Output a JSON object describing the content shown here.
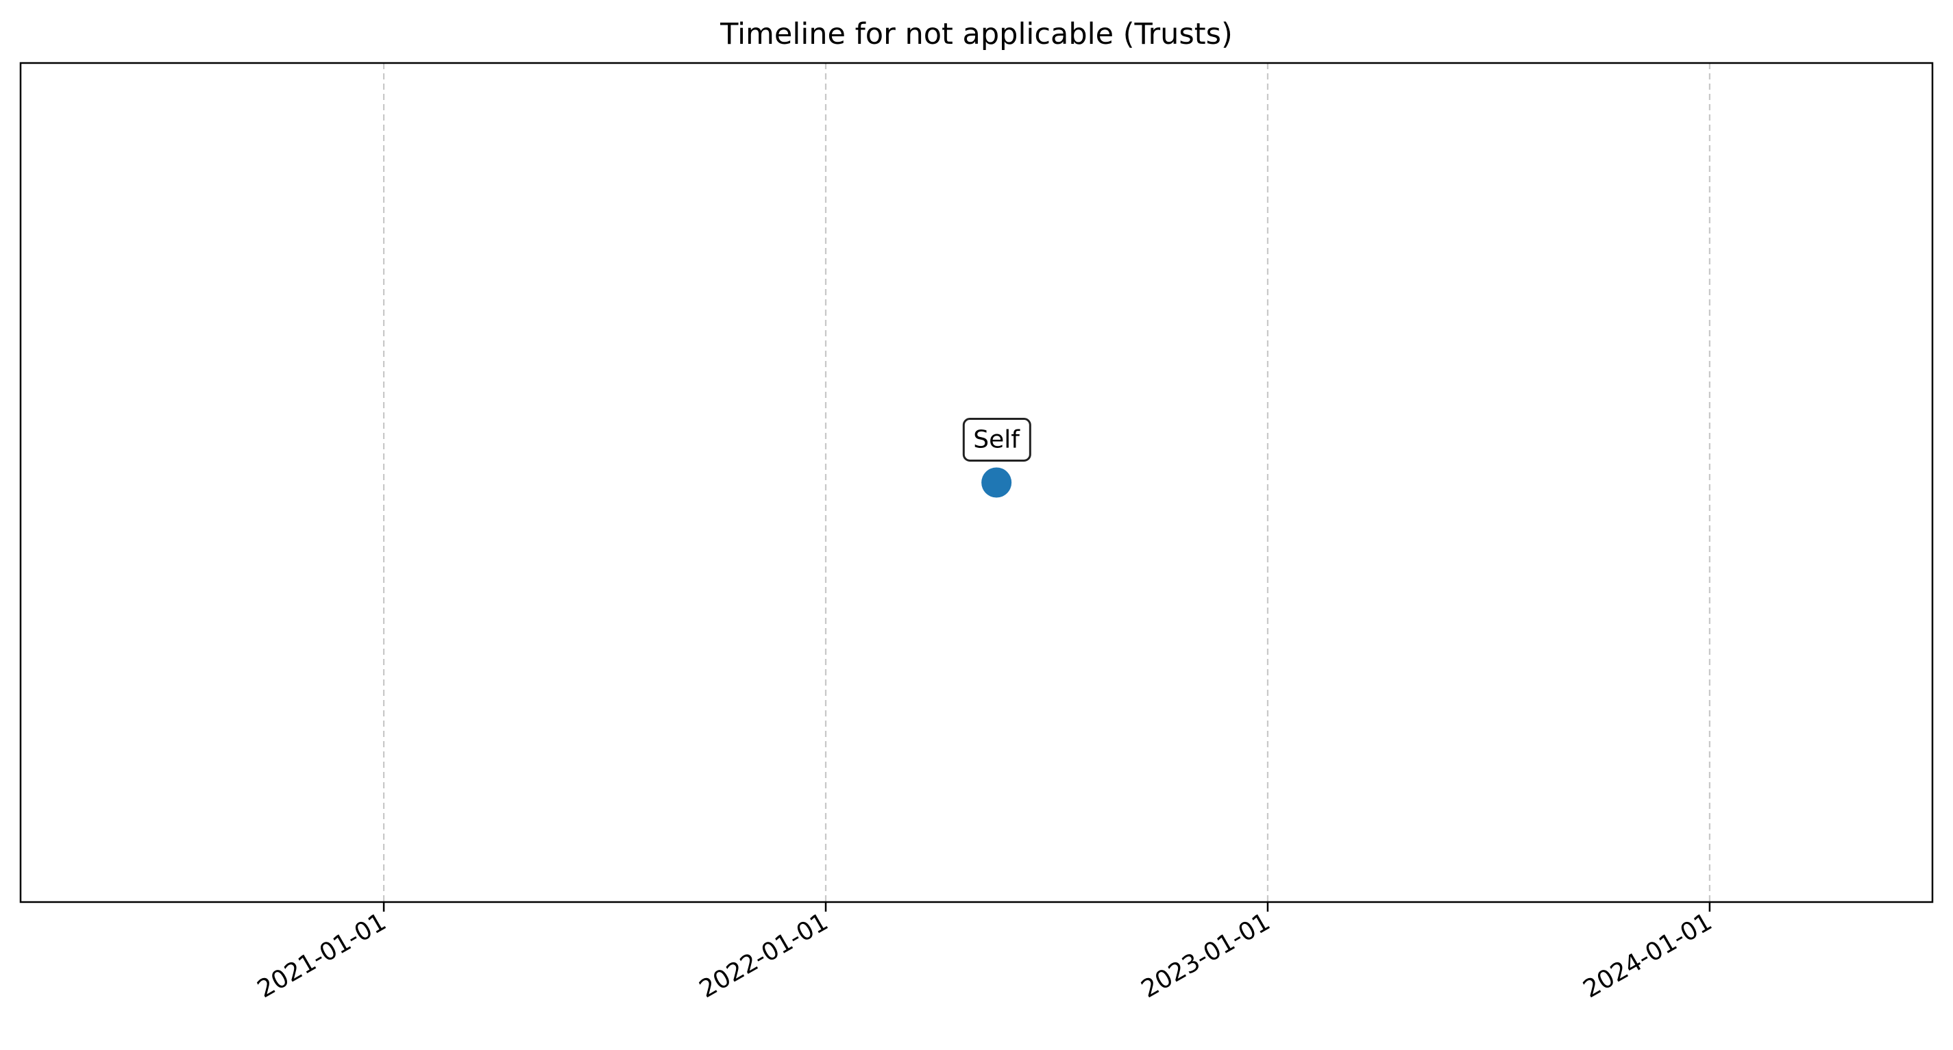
{
  "chart_data": {
    "type": "scatter",
    "title": "Timeline for not applicable (Trusts)",
    "xlabel": "",
    "ylabel": "",
    "x_axis": {
      "scale": "date",
      "ticks": [
        "2021-01-01",
        "2022-01-01",
        "2023-01-01",
        "2024-01-01"
      ],
      "range": [
        "2020-03-07",
        "2024-07-03"
      ]
    },
    "y_axis": {
      "ticks_visible": false,
      "range": [
        -0.5,
        0.5
      ]
    },
    "grid": {
      "x": true,
      "y": false,
      "style": "dashed",
      "color": "#c8c8c8"
    },
    "points": [
      {
        "date": "2022-05-22",
        "y": 0,
        "label": "Self"
      }
    ],
    "marker_color": "#1f77b4"
  }
}
